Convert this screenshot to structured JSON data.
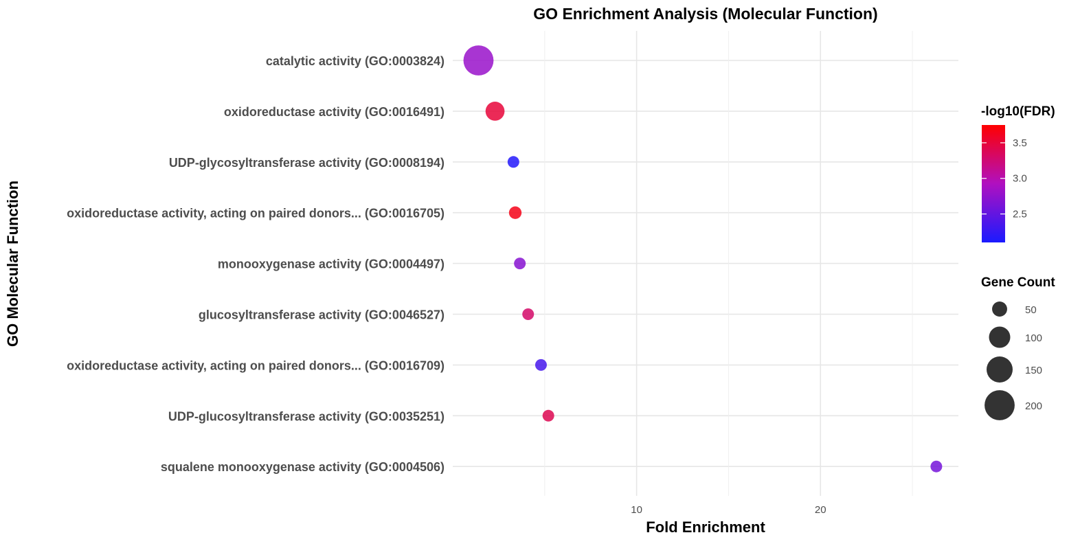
{
  "chart_data": {
    "type": "scatter",
    "title": "GO Enrichment Analysis (Molecular Function)",
    "xlabel": "Fold Enrichment",
    "ylabel": "GO Molecular Function",
    "xlim": [
      0,
      27.5
    ],
    "x_ticks": [
      10,
      20
    ],
    "x_tick_labels": [
      "10",
      "20"
    ],
    "grid": true,
    "legend_position": "right",
    "categories": [
      "catalytic activity (GO:0003824)",
      "oxidoreductase activity (GO:0016491)",
      "UDP-glycosyltransferase activity (GO:0008194)",
      "oxidoreductase activity, acting on paired donors... (GO:0016705)",
      "monooxygenase activity (GO:0004497)",
      "glucosyltransferase activity (GO:0046527)",
      "oxidoreductase activity, acting on paired donors... (GO:0016709)",
      "UDP-glucosyltransferase activity (GO:0035251)",
      "squalene monooxygenase activity (GO:0004506)"
    ],
    "points": [
      {
        "term": "catalytic activity (GO:0003824)",
        "fold_enrichment": 1.4,
        "neg_log10_fdr": 2.8,
        "gene_count": 200
      },
      {
        "term": "oxidoreductase activity (GO:0016491)",
        "fold_enrichment": 2.3,
        "neg_log10_fdr": 3.5,
        "gene_count": 80
      },
      {
        "term": "UDP-glycosyltransferase activity (GO:0008194)",
        "fold_enrichment": 3.3,
        "neg_log10_fdr": 2.15,
        "gene_count": 28
      },
      {
        "term": "oxidoreductase activity, acting on paired donors... (GO:0016705)",
        "fold_enrichment": 3.4,
        "neg_log10_fdr": 3.65,
        "gene_count": 35
      },
      {
        "term": "monooxygenase activity (GO:0004497)",
        "fold_enrichment": 3.65,
        "neg_log10_fdr": 2.7,
        "gene_count": 30
      },
      {
        "term": "glucosyltransferase activity (GO:0046527)",
        "fold_enrichment": 4.1,
        "neg_log10_fdr": 3.3,
        "gene_count": 30
      },
      {
        "term": "oxidoreductase activity, acting on paired donors... (GO:0016709)",
        "fold_enrichment": 4.8,
        "neg_log10_fdr": 2.35,
        "gene_count": 25
      },
      {
        "term": "UDP-glucosyltransferase activity (GO:0035251)",
        "fold_enrichment": 5.2,
        "neg_log10_fdr": 3.4,
        "gene_count": 30
      },
      {
        "term": "squalene monooxygenase activity (GO:0004506)",
        "fold_enrichment": 26.3,
        "neg_log10_fdr": 2.6,
        "gene_count": 8
      }
    ],
    "color_legend": {
      "title": "-log10(FDR)",
      "min": 2.1,
      "max": 3.75,
      "low_color": "#1a1aff",
      "high_color": "#ff0000",
      "ticks": [
        2.5,
        3.0,
        3.5
      ],
      "tick_labels": [
        "2.5",
        "3.0",
        "3.5"
      ]
    },
    "size_legend": {
      "title": "Gene Count",
      "values": [
        50,
        100,
        150,
        200
      ],
      "labels": [
        "50",
        "100",
        "150",
        "200"
      ]
    }
  }
}
